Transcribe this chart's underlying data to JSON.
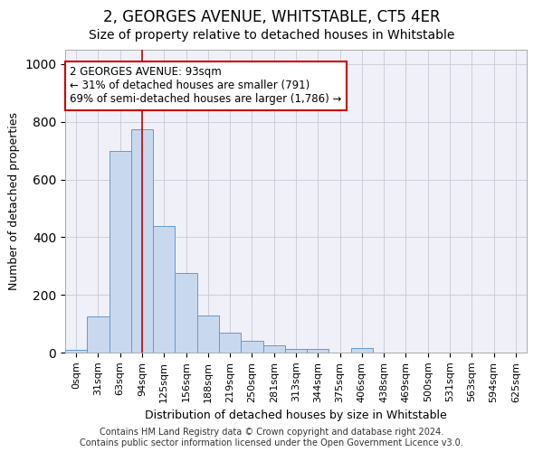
{
  "title": "2, GEORGES AVENUE, WHITSTABLE, CT5 4ER",
  "subtitle": "Size of property relative to detached houses in Whitstable",
  "xlabel": "Distribution of detached houses by size in Whitstable",
  "ylabel": "Number of detached properties",
  "bar_labels": [
    "0sqm",
    "31sqm",
    "63sqm",
    "94sqm",
    "125sqm",
    "156sqm",
    "188sqm",
    "219sqm",
    "250sqm",
    "281sqm",
    "313sqm",
    "344sqm",
    "375sqm",
    "406sqm",
    "438sqm",
    "469sqm",
    "500sqm",
    "531sqm",
    "563sqm",
    "594sqm",
    "625sqm"
  ],
  "bar_values": [
    8,
    125,
    700,
    775,
    440,
    275,
    130,
    70,
    40,
    25,
    12,
    12,
    0,
    15,
    0,
    0,
    0,
    0,
    0,
    0,
    0
  ],
  "bar_color": "#c8d9ef",
  "bar_edge_color": "#6699cc",
  "vline_x": 3.0,
  "vline_color": "#cc0000",
  "ylim": [
    0,
    1050
  ],
  "annotation_text": "2 GEORGES AVENUE: 93sqm\n← 31% of detached houses are smaller (791)\n69% of semi-detached houses are larger (1,786) →",
  "annotation_box_color": "#ffffff",
  "annotation_box_edge": "#cc0000",
  "footer1": "Contains HM Land Registry data © Crown copyright and database right 2024.",
  "footer2": "Contains public sector information licensed under the Open Government Licence v3.0.",
  "title_fontsize": 12,
  "subtitle_fontsize": 10,
  "tick_fontsize": 8,
  "ylabel_fontsize": 9,
  "xlabel_fontsize": 9,
  "annotation_fontsize": 8.5,
  "footer_fontsize": 7
}
